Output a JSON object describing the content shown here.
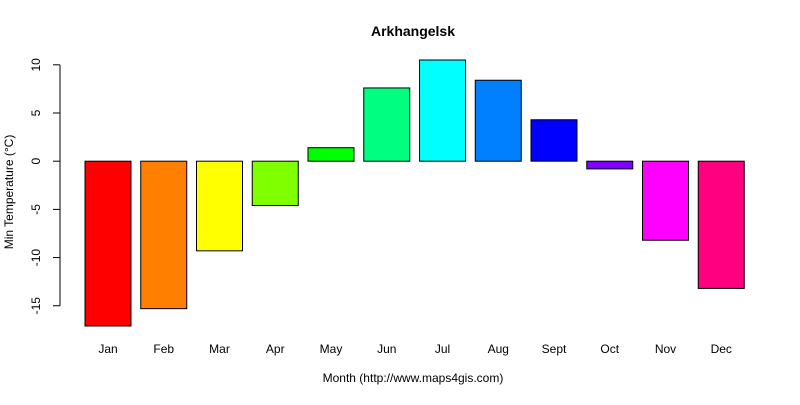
{
  "chart_data": {
    "type": "bar",
    "title": "Arkhangelsk",
    "xlabel": "Month (http://www.maps4gis.com)",
    "ylabel": "Min Temperature (°C)",
    "categories": [
      "Jan",
      "Feb",
      "Mar",
      "Apr",
      "May",
      "Jun",
      "Jul",
      "Aug",
      "Sept",
      "Oct",
      "Nov",
      "Dec"
    ],
    "values": [
      -17.1,
      -15.3,
      -9.3,
      -4.6,
      1.4,
      7.6,
      10.5,
      8.4,
      4.3,
      -0.8,
      -8.2,
      -13.2
    ],
    "colors": [
      "#FF0000",
      "#FF8000",
      "#FFFF00",
      "#80FF00",
      "#00FF00",
      "#00FF80",
      "#00FFFF",
      "#0080FF",
      "#0000FF",
      "#8000FF",
      "#FF00FF",
      "#FF0080"
    ],
    "yticks": [
      -15,
      -10,
      -5,
      0,
      5,
      10
    ],
    "ylim": [
      -17.1,
      10.5
    ],
    "grid": false,
    "legend": "none"
  }
}
